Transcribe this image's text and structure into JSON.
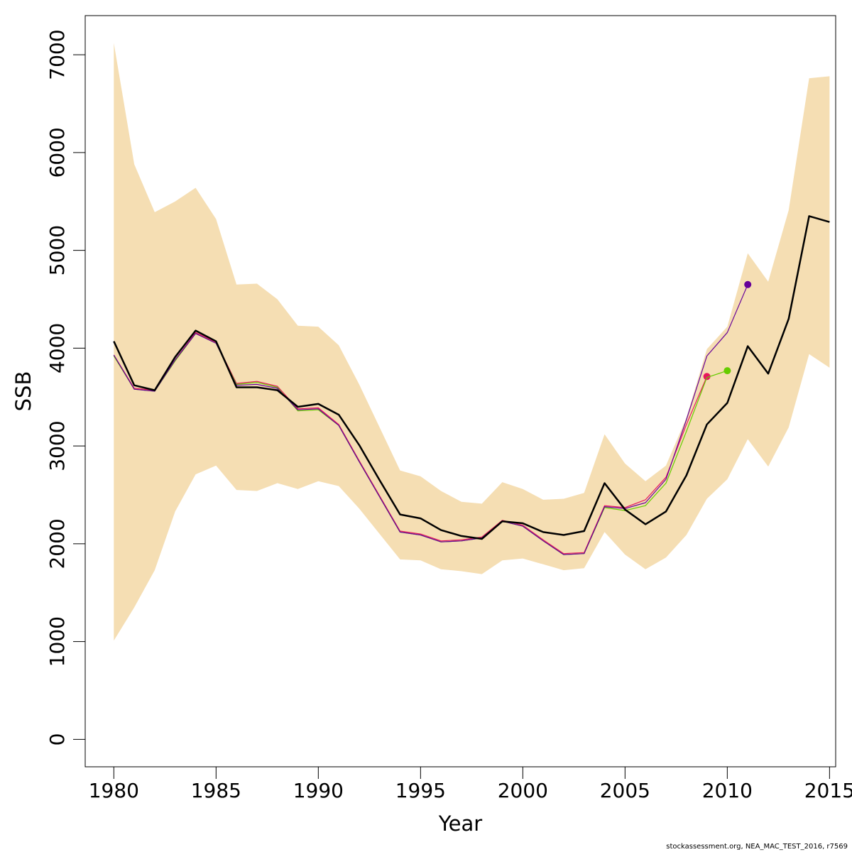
{
  "chart_data": {
    "type": "line",
    "xlabel": "Year",
    "ylabel": "SSB",
    "xlim": [
      1978.6,
      2015.3
    ],
    "ylim": [
      -280,
      7400
    ],
    "x_ticks": [
      1980,
      1985,
      1990,
      1995,
      2000,
      2005,
      2010,
      2015
    ],
    "y_ticks": [
      0,
      1000,
      2000,
      3000,
      4000,
      5000,
      6000,
      7000
    ],
    "grid": false,
    "band": {
      "color": "#f5deb3",
      "x": [
        1980,
        1981,
        1982,
        1983,
        1984,
        1985,
        1986,
        1987,
        1988,
        1989,
        1990,
        1991,
        1992,
        1993,
        1994,
        1995,
        1996,
        1997,
        1998,
        1999,
        2000,
        2001,
        2002,
        2003,
        2004,
        2005,
        2006,
        2007,
        2008,
        2009,
        2010,
        2011,
        2012,
        2013,
        2014,
        2015
      ],
      "upper": [
        7120,
        5880,
        5390,
        5500,
        5640,
        5320,
        4650,
        4660,
        4500,
        4230,
        4220,
        4030,
        3630,
        3190,
        2750,
        2690,
        2540,
        2430,
        2410,
        2630,
        2560,
        2450,
        2460,
        2520,
        3120,
        2820,
        2640,
        2800,
        3290,
        3990,
        4220,
        4970,
        4680,
        5410,
        6760,
        6780
      ],
      "lower": [
        1010,
        1350,
        1730,
        2330,
        2710,
        2800,
        2550,
        2540,
        2620,
        2560,
        2640,
        2590,
        2360,
        2100,
        1840,
        1830,
        1740,
        1720,
        1690,
        1830,
        1850,
        1790,
        1730,
        1750,
        2120,
        1890,
        1740,
        1860,
        2090,
        2460,
        2660,
        3070,
        2790,
        3190,
        3940,
        3800
      ]
    },
    "series": [
      {
        "color": "#000000",
        "width": 2.5,
        "x": [
          1980,
          1981,
          1982,
          1983,
          1984,
          1985,
          1986,
          1987,
          1988,
          1989,
          1990,
          1991,
          1992,
          1993,
          1994,
          1995,
          1996,
          1997,
          1998,
          1999,
          2000,
          2001,
          2002,
          2003,
          2004,
          2005,
          2006,
          2007,
          2008,
          2009,
          2010,
          2011,
          2012,
          2013,
          2014,
          2015
        ],
        "y": [
          4070,
          3620,
          3570,
          3910,
          4180,
          4070,
          3600,
          3600,
          3570,
          3400,
          3430,
          3320,
          3010,
          2650,
          2300,
          2260,
          2140,
          2080,
          2050,
          2230,
          2210,
          2120,
          2090,
          2130,
          2620,
          2350,
          2200,
          2330,
          2700,
          3220,
          3440,
          4020,
          3740,
          4300,
          5350,
          5290
        ],
        "endpoint": false
      },
      {
        "color": "#e8175d",
        "width": 1.2,
        "x": [
          1980,
          1981,
          1982,
          1983,
          1984,
          1985,
          1986,
          1987,
          1988,
          1989,
          1990,
          1991,
          1992,
          1993,
          1994,
          1995,
          1996,
          1997,
          1998,
          1999,
          2000,
          2001,
          2002,
          2003,
          2004,
          2005,
          2006,
          2007,
          2008,
          2009
        ],
        "y": [
          3930,
          3590,
          3570,
          3880,
          4160,
          4060,
          3640,
          3660,
          3610,
          3380,
          3390,
          3220,
          2850,
          2490,
          2130,
          2100,
          2030,
          2040,
          2070,
          2240,
          2190,
          2040,
          1900,
          1910,
          2390,
          2370,
          2450,
          2680,
          3220,
          3710
        ],
        "endpoint": true
      },
      {
        "color": "#66cc00",
        "width": 1.2,
        "x": [
          1980,
          1981,
          1982,
          1983,
          1984,
          1985,
          1986,
          1987,
          1988,
          1989,
          1990,
          1991,
          1992,
          1993,
          1994,
          1995,
          1996,
          1997,
          1998,
          1999,
          2000,
          2001,
          2002,
          2003,
          2004,
          2005,
          2006,
          2007,
          2008,
          2009,
          2010
        ],
        "y": [
          3920,
          3580,
          3560,
          3870,
          4150,
          4050,
          3630,
          3650,
          3600,
          3360,
          3370,
          3210,
          2840,
          2480,
          2120,
          2090,
          2020,
          2030,
          2060,
          2230,
          2180,
          2030,
          1890,
          1900,
          2370,
          2340,
          2390,
          2620,
          3150,
          3700,
          3770
        ],
        "endpoint": true
      },
      {
        "color": "#660099",
        "width": 1.2,
        "x": [
          1980,
          1981,
          1982,
          1983,
          1984,
          1985,
          1986,
          1987,
          1988,
          1989,
          1990,
          1991,
          1992,
          1993,
          1994,
          1995,
          1996,
          1997,
          1998,
          1999,
          2000,
          2001,
          2002,
          2003,
          2004,
          2005,
          2006,
          2007,
          2008,
          2009,
          2010,
          2011
        ],
        "y": [
          3930,
          3580,
          3560,
          3880,
          4150,
          4050,
          3620,
          3630,
          3590,
          3370,
          3380,
          3210,
          2840,
          2480,
          2120,
          2090,
          2020,
          2030,
          2060,
          2230,
          2180,
          2030,
          1890,
          1900,
          2380,
          2360,
          2420,
          2660,
          3270,
          3920,
          4160,
          4650
        ],
        "endpoint": true
      }
    ]
  },
  "footer": "stockassessment.org, NEA_MAC_TEST_2016, r7569"
}
